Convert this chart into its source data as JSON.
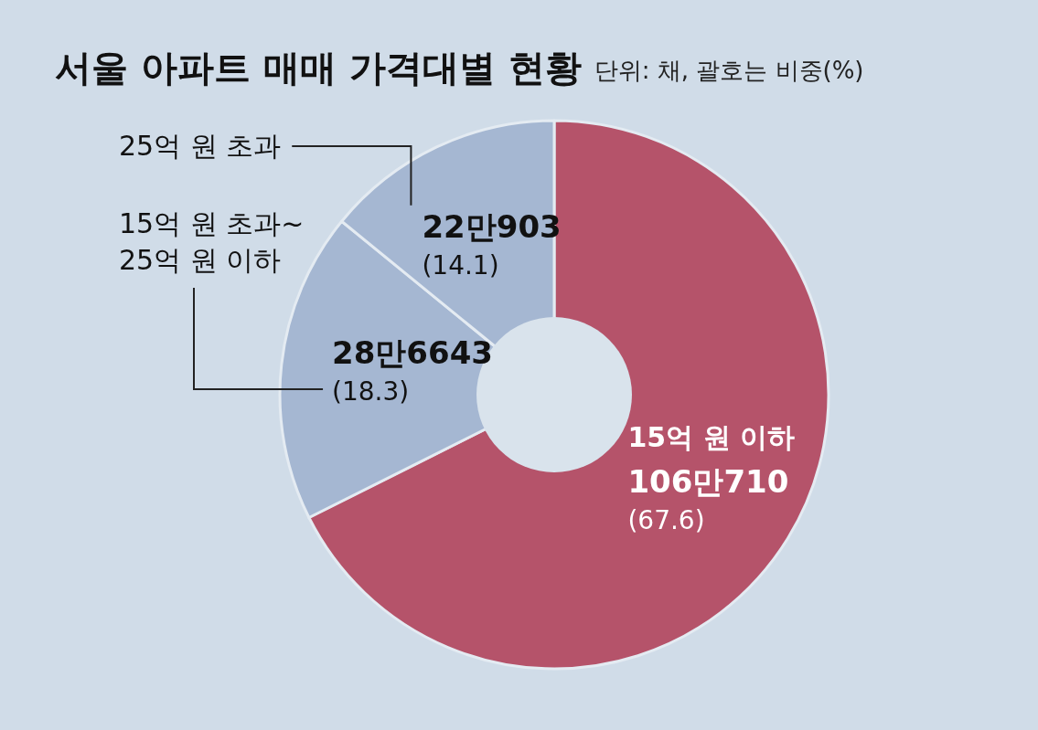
{
  "chart_data": {
    "type": "donut",
    "title": "서울 아파트 매매 가격대별 현황",
    "subtitle": "단위: 채, 괄호는 비중(%)",
    "categories": [
      "15억 원 이하",
      "15억 원 초과~\n25억 원 이하",
      "25억 원 초과"
    ],
    "values": [
      67.6,
      18.3,
      14.1
    ],
    "value_labels": [
      "106만710\n(67.6)",
      "28만6643\n(18.3)",
      "22만903\n(14.1)"
    ],
    "colors": [
      "#b5536a",
      "#a5b7d2",
      "#a5b7d2"
    ]
  }
}
